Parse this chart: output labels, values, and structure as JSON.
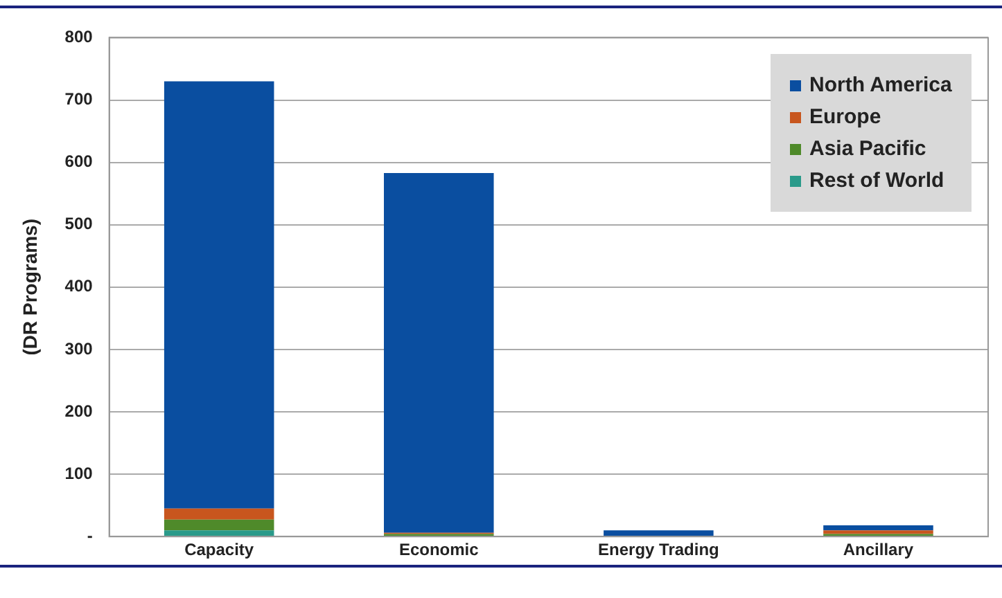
{
  "chart_data": {
    "type": "bar",
    "ylabel": "(DR Programs)",
    "categories": [
      "Capacity",
      "Economic",
      "Energy Trading",
      "Ancillary"
    ],
    "stacked": true,
    "series": [
      {
        "name": "Rest of World",
        "color": "#2a9a8a",
        "values": [
          10,
          1,
          0,
          0
        ]
      },
      {
        "name": "Asia Pacific",
        "color": "#4f8a2a",
        "values": [
          17,
          3,
          0,
          4
        ]
      },
      {
        "name": "Europe",
        "color": "#c8561e",
        "values": [
          18,
          2,
          0,
          6
        ]
      },
      {
        "name": "North America",
        "color": "#0a4ea0",
        "values": [
          685,
          577,
          10,
          8
        ]
      }
    ],
    "ylim": [
      0,
      800
    ],
    "yticks": [
      {
        "value": 0,
        "label": "-"
      },
      100,
      200,
      300,
      400,
      500,
      600,
      700,
      800
    ],
    "grid": "y",
    "legend": "top right"
  }
}
